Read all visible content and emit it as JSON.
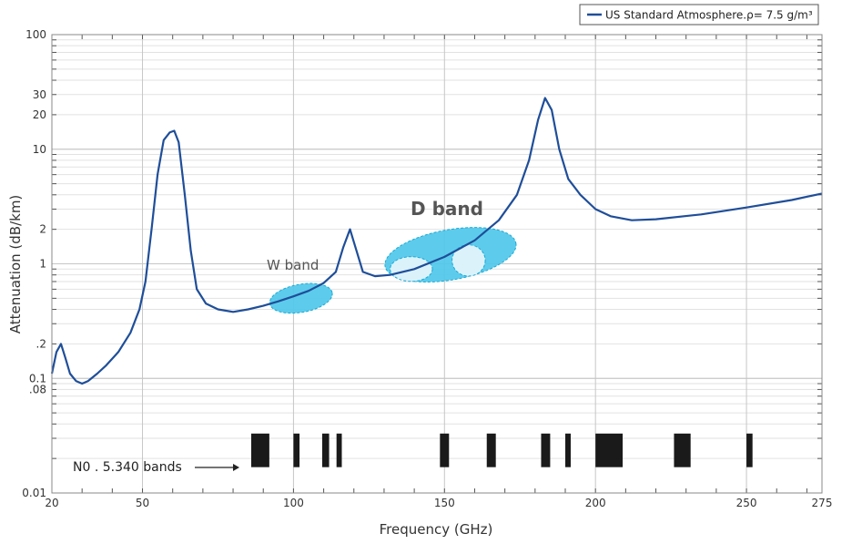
{
  "chart_data": {
    "type": "line",
    "xlabel": "Frequency (GHz)",
    "ylabel": "Attenuation (dB/km)",
    "xlim": [
      20,
      275
    ],
    "ylim": [
      0.01,
      100
    ],
    "yscale": "log",
    "grid": true,
    "legend_position": "top-right",
    "x_ticks": [
      20,
      50,
      100,
      150,
      200,
      250,
      275
    ],
    "x_tick_labels": [
      "20",
      "50",
      "100",
      "150",
      "200",
      "250",
      "275"
    ],
    "y_ticks": [
      100,
      30,
      20,
      10,
      2,
      1,
      0.2,
      0.1,
      0.08,
      0.01
    ],
    "y_tick_labels": [
      "100",
      "30",
      "20",
      "10",
      "2",
      "1",
      ".2",
      "0.1",
      ".08",
      "0.01"
    ],
    "series": [
      {
        "name": "US Standard Atmosphere.ρ= 7.5 g/m³",
        "color": "#1f4e99",
        "points": [
          [
            20,
            0.11
          ],
          [
            21.5,
            0.17
          ],
          [
            23,
            0.2
          ],
          [
            24.5,
            0.15
          ],
          [
            26,
            0.11
          ],
          [
            28,
            0.095
          ],
          [
            30,
            0.09
          ],
          [
            32,
            0.095
          ],
          [
            35,
            0.11
          ],
          [
            38,
            0.13
          ],
          [
            42,
            0.17
          ],
          [
            46,
            0.25
          ],
          [
            49,
            0.4
          ],
          [
            51,
            0.7
          ],
          [
            53,
            2.0
          ],
          [
            55,
            6.0
          ],
          [
            57,
            12.0
          ],
          [
            59,
            14.0
          ],
          [
            60.5,
            14.5
          ],
          [
            62,
            11.5
          ],
          [
            64,
            4.0
          ],
          [
            66,
            1.3
          ],
          [
            68,
            0.6
          ],
          [
            71,
            0.45
          ],
          [
            75,
            0.4
          ],
          [
            80,
            0.38
          ],
          [
            85,
            0.4
          ],
          [
            90,
            0.43
          ],
          [
            95,
            0.47
          ],
          [
            100,
            0.52
          ],
          [
            105,
            0.58
          ],
          [
            110,
            0.68
          ],
          [
            114,
            0.85
          ],
          [
            116.5,
            1.4
          ],
          [
            118.7,
            2.0
          ],
          [
            120.5,
            1.4
          ],
          [
            123,
            0.85
          ],
          [
            127,
            0.78
          ],
          [
            132,
            0.8
          ],
          [
            140,
            0.9
          ],
          [
            150,
            1.15
          ],
          [
            160,
            1.6
          ],
          [
            168,
            2.4
          ],
          [
            174,
            4.0
          ],
          [
            178,
            8.0
          ],
          [
            181,
            18.0
          ],
          [
            183.3,
            28.0
          ],
          [
            185.5,
            22.0
          ],
          [
            188,
            10.0
          ],
          [
            191,
            5.5
          ],
          [
            195,
            4.0
          ],
          [
            200,
            3.0
          ],
          [
            205,
            2.6
          ],
          [
            212,
            2.4
          ],
          [
            220,
            2.45
          ],
          [
            235,
            2.7
          ],
          [
            250,
            3.1
          ],
          [
            265,
            3.6
          ],
          [
            275,
            4.1
          ]
        ]
      }
    ],
    "band_labels": {
      "w": "W band",
      "d": "D band",
      "allocations": "N0 . 5.340 bands"
    },
    "allocated_bands_ghz": [
      [
        86,
        92
      ],
      [
        100,
        102
      ],
      [
        109.5,
        111.8
      ],
      [
        114.25,
        116
      ],
      [
        148.5,
        151.5
      ],
      [
        164,
        167
      ],
      [
        182,
        185
      ],
      [
        190,
        191.8
      ],
      [
        200,
        209
      ],
      [
        226,
        231.5
      ],
      [
        250,
        252
      ]
    ],
    "highlight_regions_ghz": {
      "w_band": {
        "center": [
          102.5,
          0.5
        ],
        "span_x": [
          92,
          113
        ],
        "span_y": [
          0.37,
          0.65
        ]
      },
      "d_band": {
        "center": [
          152,
          1.2
        ],
        "span_x": [
          131,
          175
        ],
        "span_y": [
          0.73,
          2.0
        ]
      },
      "d_sub_1": {
        "center": [
          139,
          0.9
        ],
        "span_x": [
          132,
          146
        ],
        "span_y": [
          0.7,
          1.15
        ]
      },
      "d_sub_2": {
        "center": [
          158,
          1.07
        ],
        "span_x": [
          152.5,
          163.5
        ],
        "span_y": [
          0.8,
          1.5
        ]
      }
    }
  },
  "colors": {
    "line": "#1f4e99",
    "highlight_fill": "#4fc8ea",
    "highlight_stroke": "#1aa9d6",
    "highlight_inner": "#e6f5fb",
    "band_block": "#1a1a1a",
    "grid_major": "#c6c6c6",
    "grid_minor": "#e2e2e2"
  }
}
